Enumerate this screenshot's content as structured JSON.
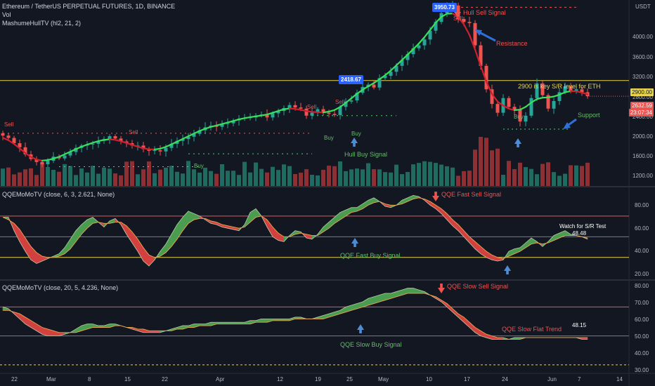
{
  "header": {
    "symbol_line": "Ethereum / TetherUS PERPETUAL FUTURES, 1D, BINANCE",
    "vol_label": "Vol",
    "hull_label": "MashumeHullTV (hl2, 21, 2)",
    "currency": "USDT"
  },
  "price_axis": {
    "ticks": [
      "4000.00",
      "3600.00",
      "3200.00",
      "2800.00",
      "2400.00",
      "2000.00",
      "1600.00",
      "1200.00"
    ],
    "tag_2900": "2900.00",
    "tag_current": "2632.59",
    "tag_countdown": "23:07:34"
  },
  "qqe_fast": {
    "title": "QQEMoMoTV (close, 6, 3, 2.621, None)",
    "ticks": [
      "80.00",
      "60.00",
      "40.00",
      "20.00"
    ],
    "value": "48.48",
    "watch_note": "Watch for S/R Test",
    "sell_signal": "QQE Fast Sell Signal",
    "buy_signal": "QQE Fast Buy Signal"
  },
  "qqe_slow": {
    "title": "QQEMoMoTV (close, 20, 5, 4.236, None)",
    "ticks": [
      "80.00",
      "70.00",
      "60.00",
      "50.00",
      "40.00",
      "30.00"
    ],
    "value": "48.15",
    "sell_signal": "QQE Slow Sell Signal",
    "buy_signal": "QQE Slow Buy Signal",
    "flat_trend": "QQE Slow Flat Trend"
  },
  "annotations": {
    "hull_sell": "Hull Sell Signal",
    "resistance": "Resistance",
    "key_level": "2900 is key S/R level for ETH",
    "support": "Support",
    "hull_buy": "Hull Buy Signal",
    "price_top": "3950.73",
    "price_low": "2418.67",
    "sell": "Sell",
    "buy": "Buy"
  },
  "time_axis": [
    "22",
    "Mar",
    "8",
    "15",
    "22",
    "Apr",
    "12",
    "19",
    "25",
    "May",
    "10",
    "17",
    "24",
    "Jun",
    "7",
    "14"
  ],
  "colors": {
    "bg": "#131722",
    "up": "#26a69a",
    "down": "#ef5350",
    "hull_up": "#39e05a",
    "hull_down": "#d01f2e",
    "key_level": "#e8d44d",
    "qqe_green": "#4a9d4f",
    "qqe_red": "#d2413f",
    "price_tag": "#2962ff"
  },
  "chart_data": [
    {
      "type": "line",
      "title": "Ethereum / TetherUS PERPETUAL FUTURES, 1D, BINANCE",
      "ylim": [
        1100,
        4250
      ],
      "x": [
        0,
        1,
        2,
        3,
        4,
        5,
        6,
        7,
        8,
        9,
        10,
        11,
        12,
        13,
        14,
        15,
        16,
        17,
        18,
        19,
        20,
        21,
        22,
        23,
        24,
        25,
        26,
        27,
        28,
        29,
        30,
        31,
        32,
        33,
        34,
        35,
        36,
        37,
        38,
        39,
        40,
        41,
        42,
        43,
        44,
        45,
        46,
        47,
        48,
        49,
        50,
        51,
        52,
        53,
        54,
        55,
        56,
        57,
        58,
        59,
        60,
        61,
        62,
        63,
        64,
        65,
        66,
        67,
        68,
        69,
        70,
        71,
        72,
        73,
        74,
        75,
        76,
        77,
        78,
        79,
        80,
        81,
        82,
        83,
        84,
        85,
        86,
        87,
        88,
        89,
        90,
        91,
        92,
        93,
        94,
        95,
        96,
        97,
        98,
        99,
        100,
        101,
        102,
        103,
        104
      ],
      "series": [
        {
          "name": "close",
          "values": [
            1960,
            1920,
            1830,
            1760,
            1640,
            1560,
            1510,
            1470,
            1530,
            1600,
            1570,
            1620,
            1680,
            1750,
            1790,
            1810,
            1820,
            1870,
            1900,
            1950,
            1910,
            1860,
            1830,
            1790,
            1790,
            1730,
            1700,
            1710,
            1690,
            1750,
            1820,
            1870,
            1900,
            1940,
            1990,
            2050,
            2100,
            2130,
            2110,
            2160,
            2170,
            2220,
            2250,
            2260,
            2270,
            2300,
            2320,
            2270,
            2340,
            2380,
            2430,
            2480,
            2440,
            2420,
            2300,
            2350,
            2410,
            2350,
            2330,
            2310,
            2450,
            2540,
            2560,
            2690,
            2790,
            2830,
            2780,
            2940,
            2980,
            3050,
            3150,
            3250,
            3350,
            3450,
            3500,
            3600,
            3750,
            3900,
            4050,
            4150,
            4180,
            3950,
            3900,
            3880,
            3500,
            3150,
            2750,
            2500,
            2350,
            2600,
            2450,
            2400,
            2200,
            2300,
            2600,
            2850,
            2650,
            2420,
            2550,
            2700,
            2800,
            2720,
            2750,
            2700,
            2632
          ]
        }
      ]
    },
    {
      "type": "area",
      "title": "QQEMoMoTV (close, 6, 3, 2.621, None)",
      "ylim": [
        15,
        90
      ],
      "series": [
        {
          "name": "QQE",
          "values": [
            66,
            66,
            55,
            46,
            38,
            31,
            28,
            30,
            32,
            34,
            36,
            41,
            48,
            55,
            60,
            64,
            66,
            62,
            58,
            63,
            65,
            60,
            52,
            45,
            38,
            30,
            26,
            31,
            38,
            44,
            52,
            60,
            66,
            71,
            69,
            67,
            64,
            61,
            60,
            58,
            57,
            56,
            55,
            60,
            70,
            73,
            67,
            58,
            50,
            47,
            46,
            51,
            55,
            54,
            49,
            48,
            52,
            58,
            62,
            66,
            70,
            72,
            74,
            74,
            77,
            80,
            82,
            79,
            75,
            74,
            76,
            80,
            82,
            84,
            83,
            80,
            76,
            73,
            69,
            64,
            59,
            55,
            50,
            45,
            40,
            36,
            33,
            31,
            30,
            31,
            38,
            40,
            41,
            45,
            49,
            46,
            42,
            46,
            51,
            53,
            55,
            52,
            51,
            50,
            48
          ]
        },
        {
          "name": "Signal",
          "values": [
            66,
            64,
            61,
            56,
            49,
            42,
            37,
            34,
            33,
            33,
            34,
            36,
            40,
            46,
            52,
            57,
            61,
            62,
            61,
            61,
            62,
            62,
            59,
            54,
            48,
            41,
            35,
            33,
            34,
            37,
            42,
            48,
            55,
            61,
            64,
            65,
            65,
            63,
            62,
            60,
            59,
            58,
            57,
            58,
            62,
            66,
            67,
            64,
            58,
            53,
            50,
            50,
            52,
            53,
            52,
            51,
            51,
            54,
            57,
            61,
            64,
            67,
            70,
            71,
            73,
            76,
            78,
            79,
            77,
            76,
            76,
            77,
            79,
            81,
            82,
            81,
            79,
            76,
            73,
            69,
            64,
            60,
            55,
            50,
            46,
            42,
            38,
            35,
            33,
            32,
            34,
            36,
            38,
            41,
            44,
            45,
            44,
            45,
            47,
            49,
            51,
            51,
            51,
            50,
            49
          ]
        }
      ]
    },
    {
      "type": "area",
      "title": "QQEMoMoTV (close, 20, 5, 4.236, None)",
      "ylim": [
        28,
        82
      ],
      "series": [
        {
          "name": "QQE",
          "values": [
            67,
            66,
            63,
            60,
            57,
            55,
            53,
            51,
            50,
            50,
            50,
            51,
            52,
            54,
            56,
            57,
            57,
            56,
            56,
            57,
            57,
            56,
            55,
            54,
            53,
            52,
            52,
            52,
            52,
            53,
            54,
            55,
            56,
            56,
            57,
            57,
            57,
            58,
            58,
            58,
            58,
            58,
            58,
            58,
            59,
            59,
            60,
            60,
            60,
            60,
            60,
            60,
            61,
            61,
            60,
            60,
            61,
            62,
            63,
            64,
            65,
            67,
            68,
            69,
            70,
            72,
            73,
            74,
            75,
            75,
            76,
            77,
            78,
            78,
            77,
            76,
            74,
            72,
            70,
            67,
            64,
            61,
            58,
            55,
            52,
            50,
            49,
            48,
            48,
            48,
            48,
            49,
            49,
            49,
            49,
            49,
            49,
            49,
            49,
            49,
            49,
            49,
            49,
            48,
            48
          ]
        },
        {
          "name": "Signal",
          "values": [
            65,
            65,
            64,
            63,
            61,
            59,
            57,
            55,
            54,
            53,
            52,
            52,
            52,
            52,
            53,
            54,
            55,
            55,
            55,
            55,
            56,
            56,
            55,
            55,
            54,
            54,
            53,
            53,
            53,
            53,
            53,
            54,
            54,
            55,
            55,
            56,
            56,
            56,
            57,
            57,
            57,
            57,
            57,
            57,
            57,
            58,
            58,
            58,
            59,
            59,
            59,
            59,
            60,
            60,
            60,
            60,
            60,
            60,
            61,
            62,
            63,
            64,
            65,
            66,
            67,
            68,
            69,
            70,
            71,
            72,
            73,
            74,
            75,
            75,
            75,
            75,
            74,
            73,
            71,
            69,
            66,
            63,
            61,
            58,
            55,
            53,
            51,
            50,
            49,
            49,
            48,
            48,
            48,
            49,
            49,
            49,
            49,
            49,
            49,
            49,
            49,
            49,
            49,
            49,
            49
          ]
        }
      ]
    }
  ]
}
